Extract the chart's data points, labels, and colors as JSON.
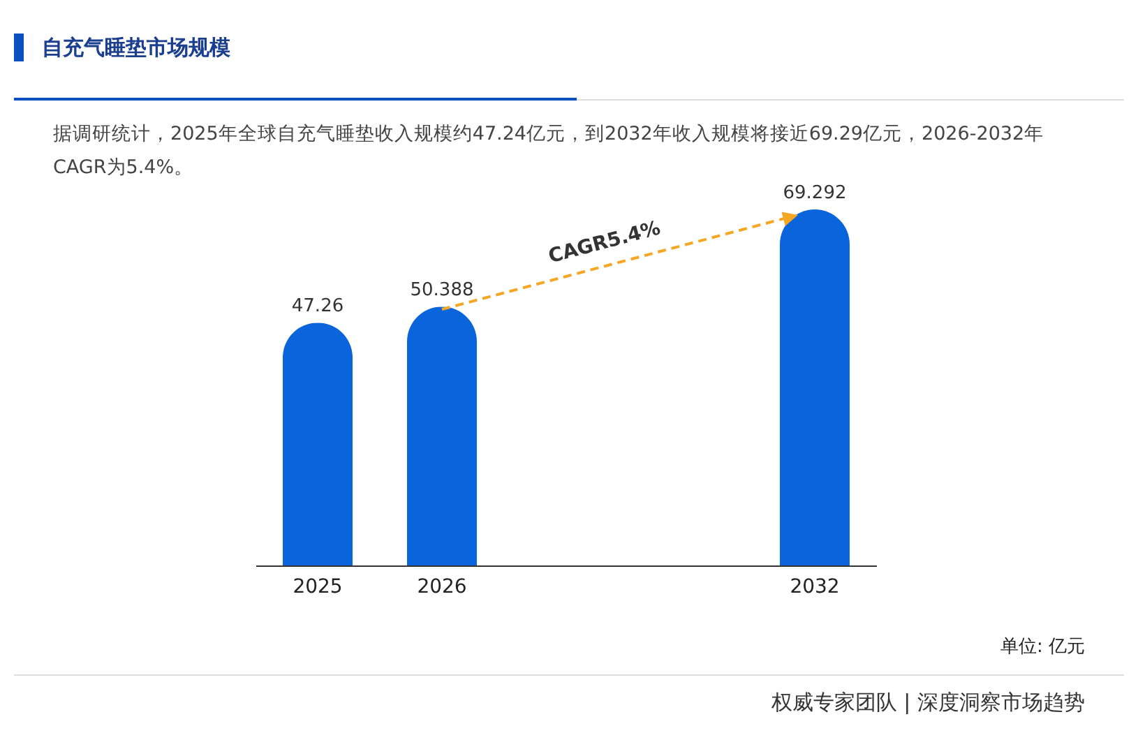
{
  "chart_data": {
    "type": "bar",
    "title": "自充气睡垫市场规模",
    "subtitle": "据调研统计，2025年全球自充气睡垫收入规模约47.24亿元，到2032年收入规模将接近69.29亿元，2026-2032年CAGR为5.4%。",
    "categories": [
      "2025",
      "2026",
      null,
      null,
      "2032"
    ],
    "values": [
      47.26,
      50.388,
      null,
      null,
      69.292
    ],
    "color": "#0a64dc",
    "data_labels": true,
    "annotations": [
      "CAGR5.4%",
      "单位: 亿元",
      "权威专家团队 | 深度洞察市场趋势"
    ]
  }
}
